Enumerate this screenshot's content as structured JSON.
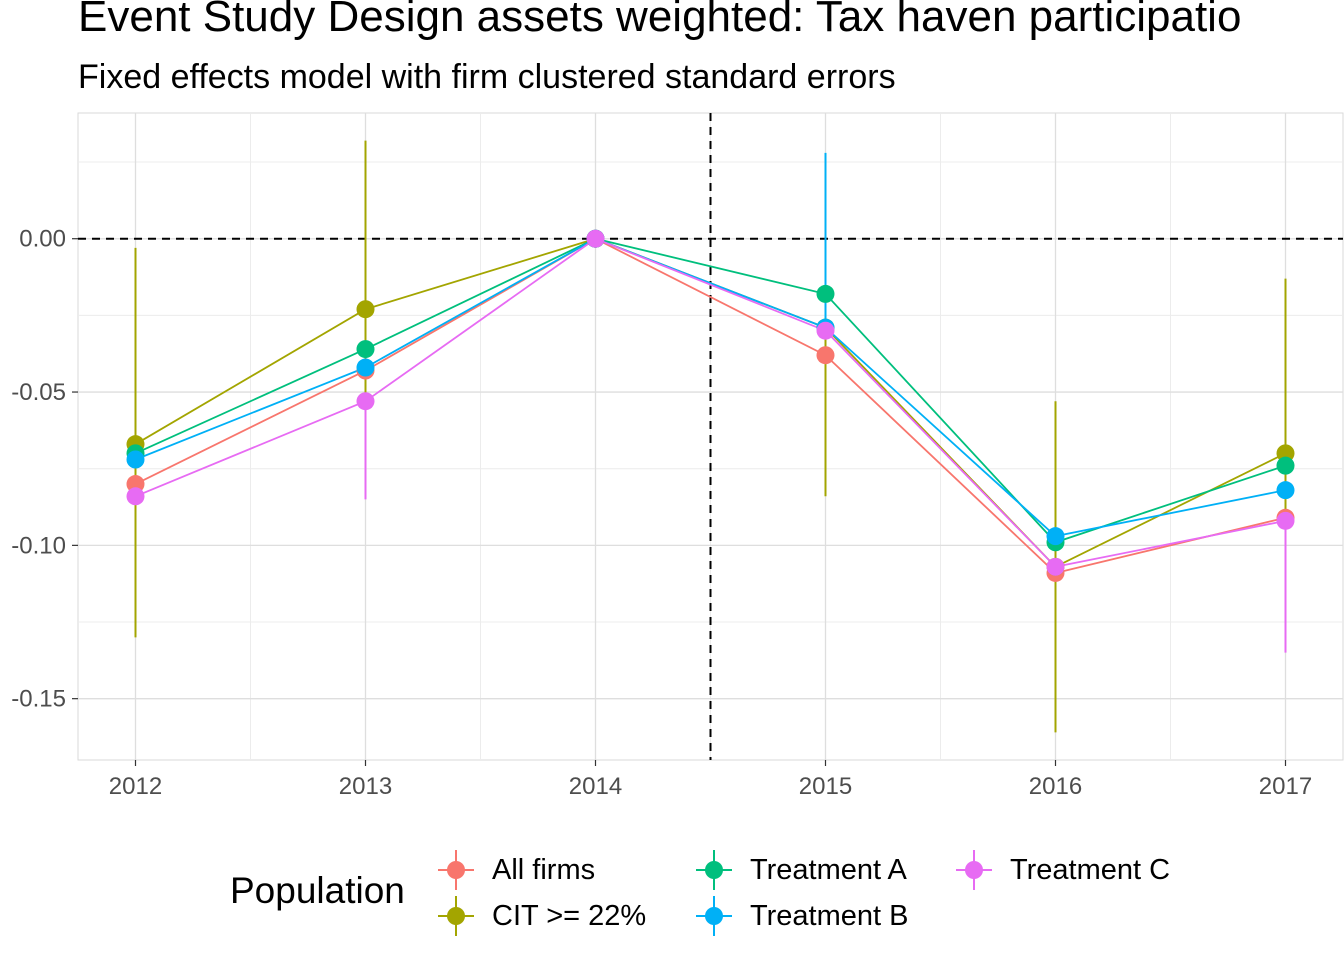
{
  "header": {
    "title": "Event Study Design assets weighted: Tax haven participatio",
    "subtitle": "Fixed effects model with firm clustered standard errors"
  },
  "chart_data": {
    "type": "line",
    "title": "Event Study Design assets weighted: Tax haven participatio",
    "subtitle": "Fixed effects model with firm clustered standard errors",
    "xlabel": "",
    "ylabel": "",
    "x": [
      2012,
      2013,
      2014,
      2015,
      2016,
      2017
    ],
    "x_tick_labels": [
      "2012",
      "2013",
      "2014",
      "2015",
      "2016",
      "2017"
    ],
    "y_ticks": [
      0.0,
      -0.05,
      -0.1,
      -0.15
    ],
    "y_tick_labels": [
      "0.00",
      "-0.05",
      "-0.10",
      "-0.15"
    ],
    "xlim": [
      2011.75,
      2017.25
    ],
    "ylim": [
      -0.17,
      0.041
    ],
    "grid": true,
    "reference_lines": {
      "horizontal_y": 0.0,
      "vertical_x": 2014.5,
      "style": "dashed"
    },
    "legend": {
      "title": "Population",
      "placement": "bottom"
    },
    "series": [
      {
        "name": "All firms",
        "color": "#F8766D",
        "values": [
          -0.08,
          -0.043,
          0.0,
          -0.038,
          -0.109,
          -0.091
        ],
        "lower": [
          -0.08,
          -0.043,
          0.0,
          -0.038,
          -0.109,
          -0.091
        ],
        "upper": [
          -0.08,
          -0.043,
          0.0,
          -0.038,
          -0.109,
          -0.091
        ]
      },
      {
        "name": "CIT >= 22%",
        "color": "#A3A500",
        "values": [
          -0.067,
          -0.023,
          0.0,
          -0.029,
          -0.107,
          -0.07
        ],
        "lower": [
          -0.13,
          -0.078,
          0.0,
          -0.084,
          -0.161,
          -0.126
        ],
        "upper": [
          -0.003,
          0.032,
          0.0,
          0.027,
          -0.053,
          -0.013
        ]
      },
      {
        "name": "Treatment A",
        "color": "#00BF7D",
        "values": [
          -0.07,
          -0.036,
          0.0,
          -0.018,
          -0.099,
          -0.074
        ],
        "lower": [
          -0.07,
          -0.036,
          0.0,
          -0.018,
          -0.099,
          -0.074
        ],
        "upper": [
          -0.07,
          -0.036,
          0.0,
          -0.018,
          -0.099,
          -0.074
        ]
      },
      {
        "name": "Treatment B",
        "color": "#00B0F6",
        "values": [
          -0.072,
          -0.042,
          0.0,
          -0.029,
          -0.097,
          -0.082
        ],
        "lower": [
          -0.072,
          -0.042,
          0.0,
          -0.029,
          -0.097,
          -0.082
        ],
        "upper": [
          -0.072,
          -0.042,
          0.0,
          0.028,
          -0.097,
          -0.082
        ]
      },
      {
        "name": "Treatment C",
        "color": "#E76BF3",
        "values": [
          -0.084,
          -0.053,
          0.0,
          -0.03,
          -0.107,
          -0.092
        ],
        "lower": [
          -0.084,
          -0.085,
          0.0,
          -0.03,
          -0.107,
          -0.135
        ],
        "upper": [
          -0.084,
          -0.053,
          0.0,
          -0.03,
          -0.107,
          -0.092
        ]
      }
    ]
  },
  "legend": {
    "title": "Population",
    "items": [
      {
        "label": "All firms",
        "color": "#F8766D"
      },
      {
        "label": "CIT >= 22%",
        "color": "#A3A500"
      },
      {
        "label": "Treatment A",
        "color": "#00BF7D"
      },
      {
        "label": "Treatment B",
        "color": "#00B0F6"
      },
      {
        "label": "Treatment C",
        "color": "#E76BF3"
      }
    ]
  }
}
